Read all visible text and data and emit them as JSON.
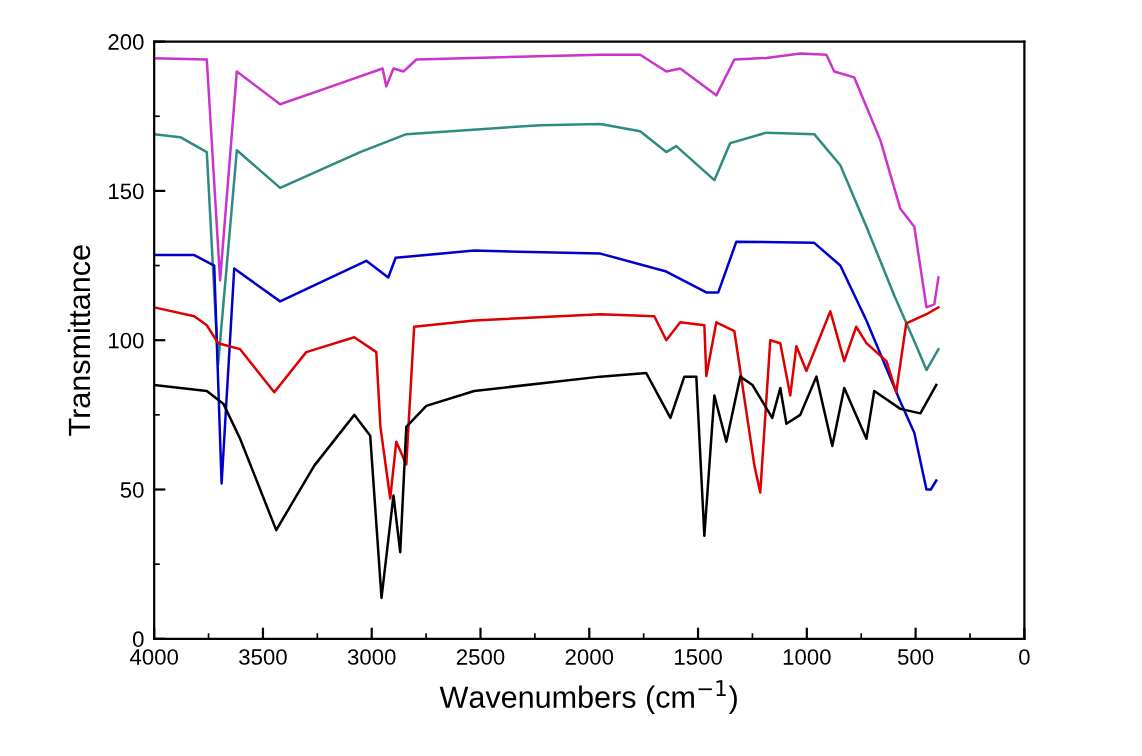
{
  "chart_data": {
    "type": "line",
    "xlabel": "Wavenumbers (cm$^{−1}$)",
    "ylabel": "Transmittance",
    "xlim": [
      4000,
      0
    ],
    "xticks": [
      4000,
      3500,
      3000,
      2500,
      2000,
      1500,
      1000,
      500,
      0
    ],
    "ylim": [
      0,
      200
    ],
    "yticks": [
      0,
      50,
      100,
      150,
      200
    ],
    "grid": false,
    "legend": false,
    "marker": "none",
    "line_style": "solid",
    "series": [
      {
        "color": "#cc33cc",
        "x": [
          4000,
          3758,
          3697,
          3620,
          3421,
          3145,
          2950,
          2933,
          2900,
          2853,
          2795,
          1949,
          1766,
          1646,
          1582,
          1416,
          1333,
          1186,
          1030,
          910,
          874,
          782,
          662,
          570,
          506,
          450,
          414,
          395
        ],
        "values": [
          194.4,
          194,
          120,
          190,
          179,
          186,
          191,
          185,
          191,
          190,
          194,
          195.6,
          195.6,
          190,
          191,
          182,
          194,
          194.5,
          196,
          195.6,
          190,
          188,
          167,
          144,
          138,
          111,
          112,
          121
        ]
      },
      {
        "color": "#2e8b80",
        "x": [
          4000,
          3880,
          3758,
          3706,
          3620,
          3421,
          3053,
          2841,
          2225,
          1949,
          1766,
          1646,
          1600,
          1425,
          1352,
          1186,
          966,
          846,
          726,
          598,
          496,
          450,
          395
        ],
        "values": [
          169,
          168,
          163,
          92,
          163.6,
          151,
          163,
          169,
          172,
          172.4,
          170,
          163,
          165,
          153.6,
          166,
          169.5,
          169,
          158.6,
          138,
          115,
          98,
          90,
          97
        ]
      },
      {
        "color": "#0000cc",
        "x": [
          4000,
          3816,
          3724,
          3690,
          3632,
          3421,
          3025,
          2924,
          2890,
          2529,
          1949,
          1646,
          1462,
          1407,
          1324,
          966,
          846,
          726,
          570,
          506,
          450,
          430,
          405
        ],
        "values": [
          128.5,
          128.5,
          125,
          52,
          124,
          113,
          126.6,
          121,
          127.6,
          130,
          129,
          123,
          116,
          116,
          133,
          132.6,
          125,
          106.6,
          79.4,
          69,
          50,
          50,
          53
        ]
      },
      {
        "color": "#dd0000",
        "x": [
          4000,
          3816,
          3758,
          3706,
          3605,
          3448,
          3301,
          3080,
          2979,
          2960,
          2915,
          2887,
          2841,
          2805,
          2529,
          1949,
          1701,
          1646,
          1582,
          1471,
          1462,
          1416,
          1333,
          1241,
          1214,
          1168,
          1122,
          1076,
          1048,
          1002,
          892,
          828,
          773,
          726,
          634,
          589,
          543,
          450,
          395
        ],
        "values": [
          111,
          108,
          105,
          99,
          97,
          82.6,
          96,
          101,
          96,
          71,
          47,
          66,
          58.4,
          104.5,
          106.6,
          108.7,
          108,
          100,
          106,
          105,
          88,
          106,
          103,
          58,
          49,
          100,
          99,
          81.5,
          98,
          89.7,
          109.7,
          93,
          104.5,
          99,
          93,
          82.6,
          105.6,
          108.7,
          111
        ]
      },
      {
        "color": "#000000",
        "x": [
          4000,
          3758,
          3681,
          3605,
          3439,
          3264,
          3080,
          3007,
          2955,
          2900,
          2869,
          2841,
          2749,
          2529,
          1949,
          1738,
          1627,
          1563,
          1508,
          1471,
          1425,
          1370,
          1306,
          1250,
          1159,
          1122,
          1094,
          1030,
          956,
          883,
          828,
          726,
          690,
          570,
          478,
          405
        ],
        "values": [
          85,
          83,
          78.6,
          67,
          36.4,
          58,
          75,
          68,
          13.7,
          48,
          29,
          71,
          78,
          83,
          87.8,
          89,
          74,
          87.8,
          87.8,
          34.5,
          81.5,
          66,
          87.8,
          85,
          74,
          84,
          72,
          75,
          87.8,
          64.6,
          84,
          67,
          83,
          77,
          75.5,
          85
        ]
      }
    ]
  }
}
